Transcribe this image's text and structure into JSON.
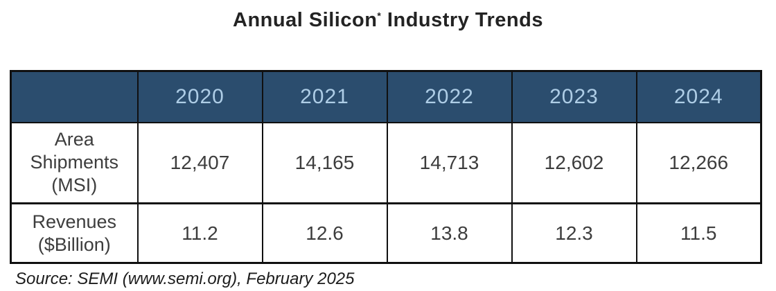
{
  "title": {
    "text_before": "Annual Silicon",
    "superscript": "*",
    "text_after": " Industry Trends"
  },
  "table": {
    "columns": [
      "2020",
      "2021",
      "2022",
      "2023",
      "2024"
    ],
    "rows": [
      {
        "label": "Area Shipments (MSI)",
        "label_lines": [
          "Area",
          "Shipments",
          "(MSI)"
        ],
        "values": [
          "12,407",
          "14,165",
          "14,713",
          "12,602",
          "12,266"
        ]
      },
      {
        "label": "Revenues ($Billion)",
        "label_lines": [
          "Revenues",
          "($Billion)"
        ],
        "values": [
          "11.2",
          "12.6",
          "13.8",
          "12.3",
          "11.5"
        ]
      }
    ]
  },
  "source": "Source: SEMI (www.semi.org), February 2025",
  "colors": {
    "header_bg": "#2B4D6E",
    "header_text": "#AECDE6",
    "body_text": "#3D3D3D",
    "border": "#101010",
    "background": "#FFFFFF"
  },
  "chart_data": {
    "type": "table",
    "title": "Annual Silicon* Industry Trends",
    "categories": [
      "2020",
      "2021",
      "2022",
      "2023",
      "2024"
    ],
    "series": [
      {
        "name": "Area Shipments (MSI)",
        "values": [
          12407,
          14165,
          14713,
          12602,
          12266
        ]
      },
      {
        "name": "Revenues ($Billion)",
        "values": [
          11.2,
          12.6,
          13.8,
          12.3,
          11.5
        ]
      }
    ],
    "source": "Source: SEMI (www.semi.org), February 2025",
    "legend_position": "none",
    "grid": true
  }
}
